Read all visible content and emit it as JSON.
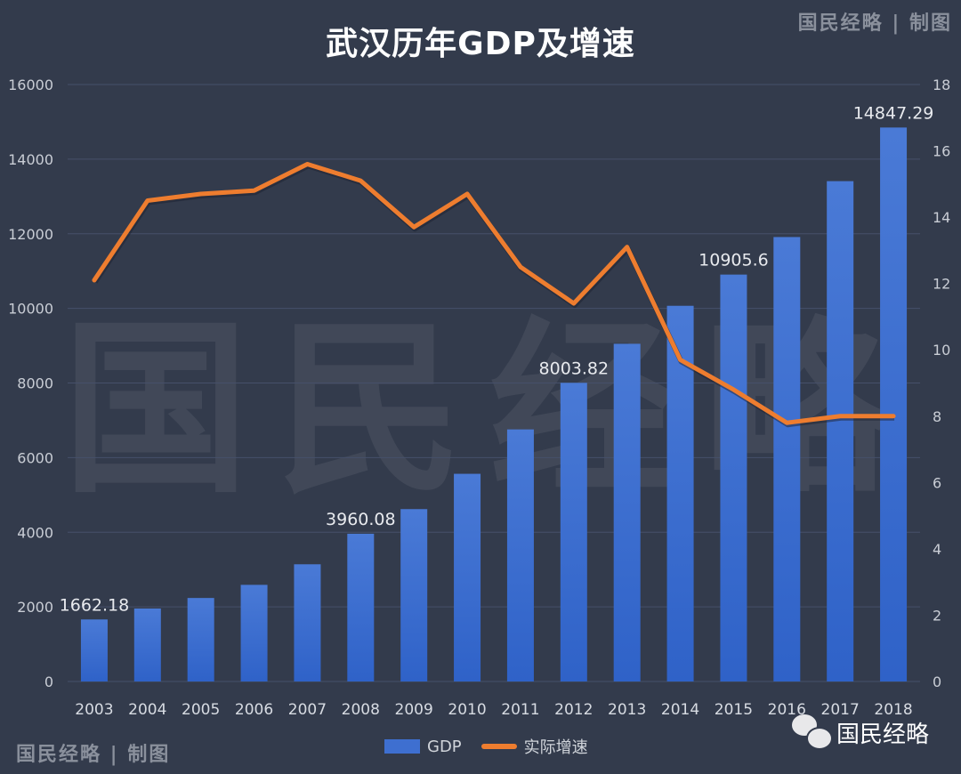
{
  "watermarks": {
    "credit_top": "国民经略 | 制图",
    "credit_bottom": "国民经略 | 制图",
    "background_text": "国民经略",
    "wechat_account": "国民经略"
  },
  "colors": {
    "background": "#333b4c",
    "bar": "#3e6fd0",
    "line": "#ee7d2f",
    "grid": "#46506a"
  },
  "chart_data": {
    "type": "bar+line",
    "title": "武汉历年GDP及增速",
    "categories": [
      "2003",
      "2004",
      "2005",
      "2006",
      "2007",
      "2008",
      "2009",
      "2010",
      "2011",
      "2012",
      "2013",
      "2014",
      "2015",
      "2016",
      "2017",
      "2018"
    ],
    "series": [
      {
        "name": "GDP",
        "type": "bar",
        "axis": "left",
        "values": [
          1662.18,
          1956,
          2238,
          2590,
          3141,
          3960.08,
          4620,
          5566,
          6756,
          8003.82,
          9051,
          10069,
          10905.6,
          11912,
          13410,
          14847.29
        ]
      },
      {
        "name": "实际增速",
        "type": "line",
        "axis": "right",
        "values": [
          12.1,
          14.5,
          14.7,
          14.8,
          15.6,
          15.1,
          13.7,
          14.7,
          12.5,
          11.4,
          13.1,
          9.7,
          8.8,
          7.8,
          8.0,
          8.0
        ]
      }
    ],
    "data_labels": [
      {
        "category": "2003",
        "text": "1662.18"
      },
      {
        "category": "2008",
        "text": "3960.08"
      },
      {
        "category": "2012",
        "text": "8003.82"
      },
      {
        "category": "2015",
        "text": "10905.6"
      },
      {
        "category": "2018",
        "text": "14847.29"
      }
    ],
    "y_left": {
      "range": [
        0,
        16000
      ],
      "ticks": [
        "0",
        "2000",
        "4000",
        "6000",
        "8000",
        "10000",
        "12000",
        "14000",
        "16000"
      ]
    },
    "y_right": {
      "range": [
        0,
        18
      ],
      "ticks": [
        "0",
        "2",
        "4",
        "6",
        "8",
        "10",
        "12",
        "14",
        "16",
        "18"
      ]
    },
    "grid": true,
    "legend": "bottom"
  }
}
